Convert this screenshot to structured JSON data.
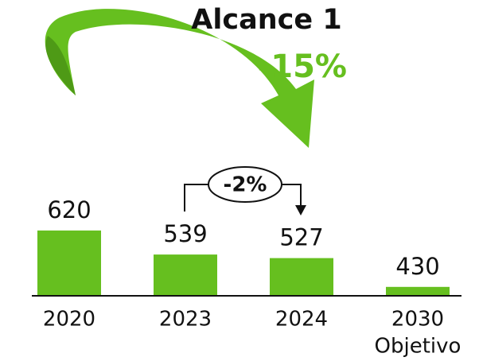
{
  "chart_data": {
    "type": "bar",
    "title": "Alcance 1",
    "change_total": "-15%",
    "change_recent": "-2%",
    "categories": [
      "2020",
      "2023",
      "2024",
      "2030"
    ],
    "category_sublabels": [
      null,
      null,
      null,
      "Objetivo"
    ],
    "values": [
      620,
      539,
      527,
      430
    ],
    "color": "#66bf1f",
    "ylim": [
      400,
      700
    ]
  }
}
